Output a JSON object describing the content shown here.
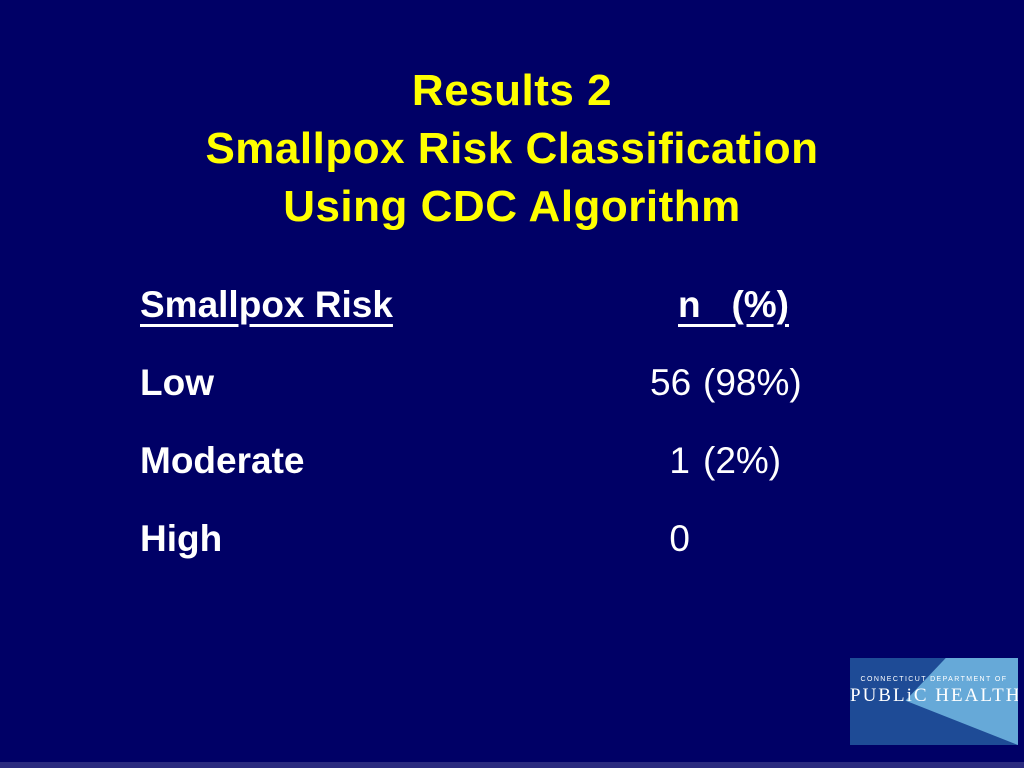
{
  "slide": {
    "background_color": "#000066",
    "title_color": "#ffff00",
    "text_color": "#ffffff",
    "title": {
      "lines": [
        "Results 2",
        "Smallpox Risk Classification",
        "Using CDC Algorithm"
      ]
    },
    "table": {
      "header": {
        "risk_label": "Smallpox Risk",
        "n_pct_label": "n   (%)"
      },
      "rows": [
        {
          "label": "Low",
          "n": "56",
          "pct": "(98%)"
        },
        {
          "label": "Moderate",
          "n": "1",
          "pct": "(2%)"
        },
        {
          "label": "High",
          "n": "0",
          "pct": ""
        }
      ]
    },
    "logo": {
      "box_color": "#1e4b96",
      "triangle_color": "#66a9d8",
      "small_text": "CONNECTICUT DEPARTMENT OF",
      "large_text": "PUBLiC HEALTH"
    }
  }
}
